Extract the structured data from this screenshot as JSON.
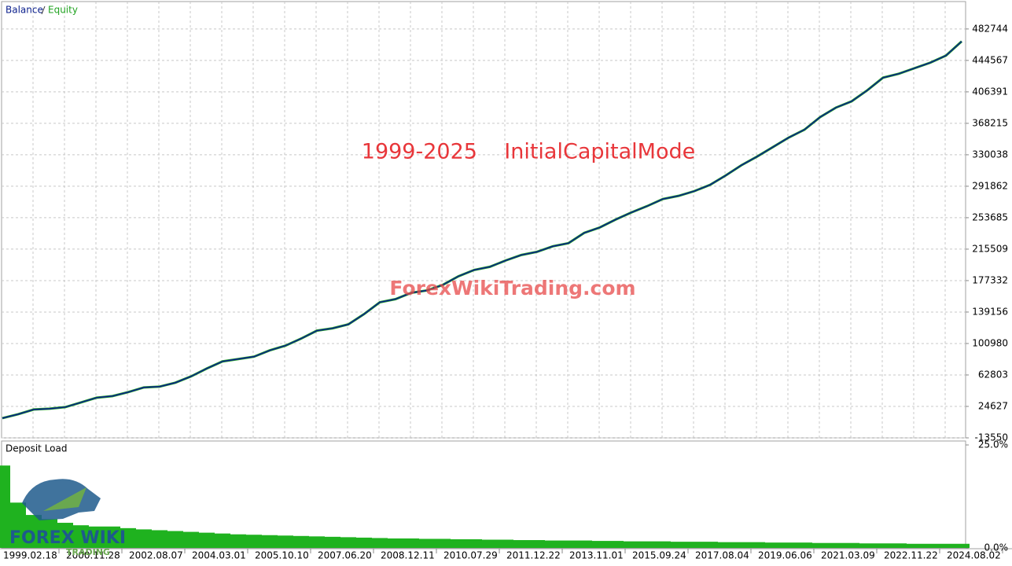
{
  "chart_data": [
    {
      "type": "line",
      "legend": "top-left",
      "grid": true,
      "series": [
        {
          "name": "Balance",
          "color": "#0a1e8c",
          "values": [
            10370,
            15150,
            20900,
            21850,
            23760,
            29500,
            35250,
            37160,
            41950,
            47690,
            48640,
            53430,
            61080,
            70650,
            79260,
            82130,
            85000,
            92650,
            98390,
            107000,
            116570,
            119440,
            124230,
            136670,
            151020,
            154850,
            162500,
            165380,
            172080,
            182600,
            190250,
            194080,
            201730,
            208430,
            212270,
            218960,
            222790,
            235230,
            241930,
            251490,
            260100,
            267750,
            276360,
            280190,
            285930,
            293580,
            304990,
            317430,
            327960,
            339430,
            350920,
            360480,
            375790,
            387270,
            394930,
            408330,
            423640,
            428420,
            435120,
            441810,
            450420,
            467650
          ]
        },
        {
          "name": "Equity",
          "color": "#21a321",
          "values": [
            10370,
            15150,
            20900,
            21850,
            23760,
            29500,
            35250,
            37160,
            41950,
            47690,
            48640,
            53430,
            61080,
            70650,
            79260,
            82130,
            85000,
            92650,
            98390,
            107000,
            116570,
            119440,
            124230,
            136670,
            151020,
            154850,
            162500,
            165380,
            172080,
            182600,
            190250,
            194080,
            201730,
            208430,
            212270,
            218960,
            222790,
            235230,
            241930,
            251490,
            260100,
            267750,
            276360,
            280190,
            285930,
            293580,
            304990,
            317430,
            327960,
            339430,
            350920,
            360480,
            375790,
            387270,
            394930,
            408330,
            423640,
            428420,
            435120,
            441810,
            450420,
            467650
          ]
        }
      ],
      "ylim": [
        -13550,
        516000
      ],
      "yticks": [
        -13550,
        24627,
        62803,
        100980,
        139156,
        177332,
        215509,
        253685,
        291862,
        330038,
        368215,
        406391,
        444567,
        482744
      ],
      "annotations": [
        "1999-2025    InitialCapitalMode",
        "ForexWikiTrading.com",
        "FOREX WIKI",
        "TRADING"
      ]
    },
    {
      "type": "area",
      "title": "Deposit Load",
      "color": "#1fb21f",
      "categories": [
        "1999.02.18",
        null,
        null,
        null,
        "2000.11.28",
        null,
        null,
        null,
        "2002.08.07",
        null,
        null,
        null,
        "2004.03.01",
        null,
        null,
        null,
        "2005.10.10",
        null,
        null,
        null,
        "2007.06.20",
        null,
        null,
        null,
        "2008.12.11",
        null,
        null,
        null,
        "2010.07.29",
        null,
        null,
        null,
        "2011.12.22",
        null,
        null,
        null,
        "2013.11.01",
        null,
        null,
        null,
        "2015.09.24",
        null,
        null,
        null,
        "2017.08.04",
        null,
        null,
        null,
        "2019.06.06",
        null,
        null,
        null,
        "2021.03.09",
        null,
        null,
        null,
        "2022.11.22",
        null,
        null,
        null,
        "2024.08.02",
        null
      ],
      "values": [
        20,
        11,
        8,
        7,
        6.1,
        5.5,
        5.2,
        5.2,
        4.8,
        4.5,
        4.3,
        4.1,
        3.9,
        3.7,
        3.5,
        3.3,
        3.2,
        3.1,
        3,
        2.9,
        2.8,
        2.7,
        2.6,
        2.5,
        2.4,
        2.3,
        2.3,
        2.2,
        2.2,
        2.1,
        2.1,
        2,
        2,
        1.9,
        1.9,
        1.8,
        1.8,
        1.8,
        1.7,
        1.7,
        1.6,
        1.6,
        1.6,
        1.5,
        1.5,
        1.5,
        1.4,
        1.4,
        1.4,
        1.3,
        1.3,
        1.3,
        1.2,
        1.2,
        1.2,
        1.1,
        1.1,
        1.1,
        1,
        1,
        1,
        1
      ],
      "ylim": [
        0,
        25
      ],
      "yticks": [
        {
          "value": 0,
          "label": "0.0%"
        },
        {
          "value": 25,
          "label": "25.0%"
        }
      ]
    }
  ]
}
